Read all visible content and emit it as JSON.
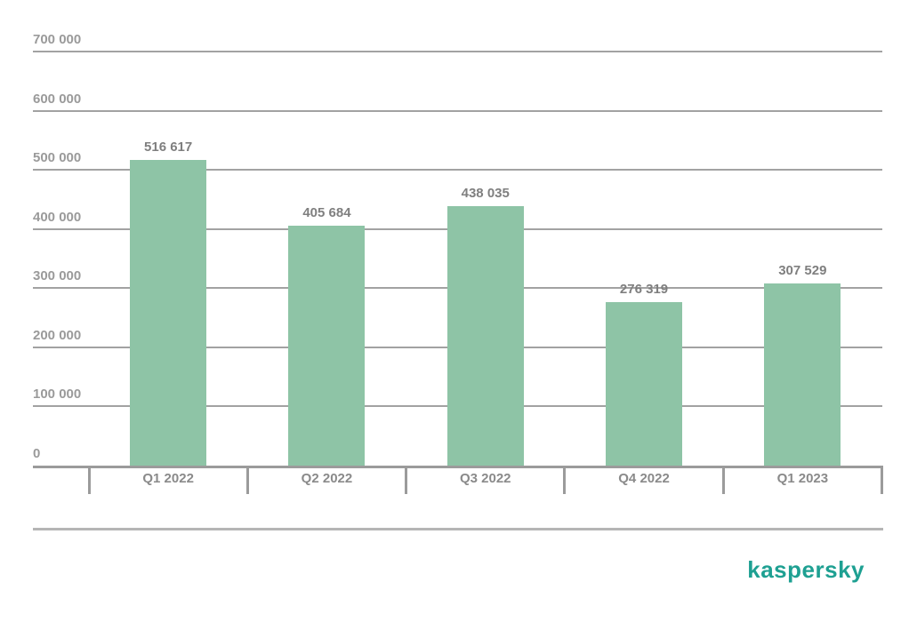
{
  "chart_data": {
    "type": "bar",
    "title": "",
    "categories": [
      "Q1 2022",
      "Q2 2022",
      "Q3 2022",
      "Q4 2022",
      "Q1 2023"
    ],
    "values": [
      516617,
      405684,
      438035,
      276319,
      307529
    ],
    "value_labels": [
      "516 617",
      "405 684",
      "438 035",
      "276 319",
      "307 529"
    ],
    "ylim": [
      0,
      700000
    ],
    "ytick_step": 100000,
    "ytick_labels": [
      "0",
      "100 000",
      "200 000",
      "300 000",
      "400 000",
      "500 000",
      "600 000",
      "700 000"
    ],
    "grid": "horizontal-only",
    "legend": "none",
    "xlabel": "",
    "ylabel": ""
  },
  "colors": {
    "background": "#ffffff",
    "bar": "#8ec4a6",
    "grid": "#a2a2a2",
    "axis": "#9b9b9b",
    "ytick_label": "#9a9a9a",
    "value_label": "#7f7f7f",
    "category_label": "#8a8a8a",
    "separator": "#b5b5b5",
    "logo": "#1ea092"
  },
  "branding": {
    "logo_text": "kaspersky"
  }
}
